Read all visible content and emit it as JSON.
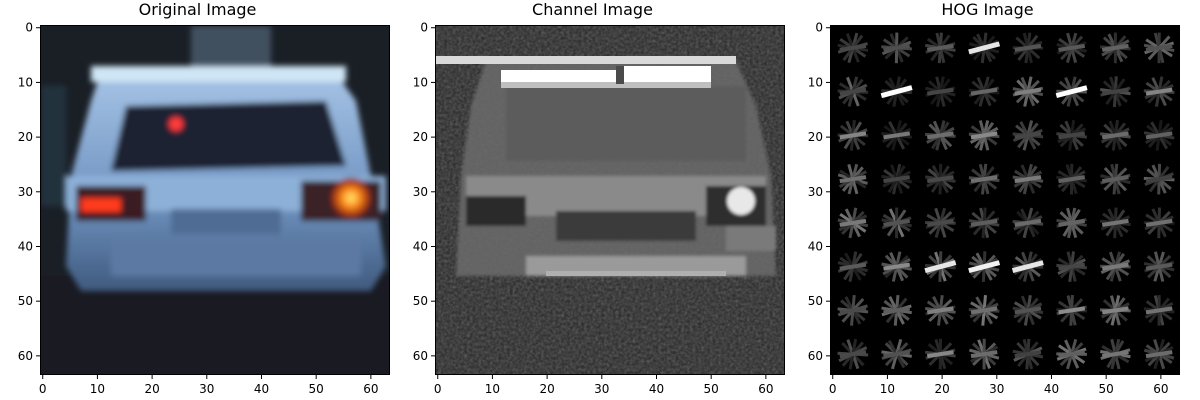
{
  "figure": {
    "panels": [
      {
        "title": "Original Image",
        "image_kind": "rgb-car-rear",
        "x_ticks": [
          "0",
          "10",
          "20",
          "30",
          "40",
          "50",
          "60"
        ],
        "y_ticks": [
          "0",
          "10",
          "20",
          "30",
          "40",
          "50",
          "60"
        ]
      },
      {
        "title": "Channel Image",
        "image_kind": "grayscale-channel",
        "x_ticks": [
          "0",
          "10",
          "20",
          "30",
          "40",
          "50",
          "60"
        ],
        "y_ticks": [
          "0",
          "10",
          "20",
          "30",
          "40",
          "50",
          "60"
        ]
      },
      {
        "title": "HOG Image",
        "image_kind": "hog-visualization",
        "x_ticks": [
          "0",
          "10",
          "20",
          "30",
          "40",
          "50",
          "60"
        ],
        "y_ticks": [
          "0",
          "10",
          "20",
          "30",
          "40",
          "50",
          "60"
        ]
      }
    ],
    "colors": {
      "car_body": "#7a9ec8",
      "window": "#1c2433",
      "tail_light": "#ff3a1a",
      "background_dark": "#15181c"
    }
  }
}
